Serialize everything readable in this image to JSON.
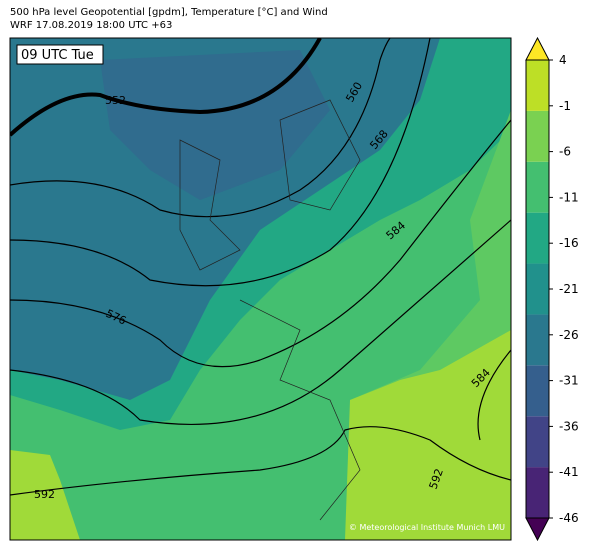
{
  "header": {
    "title": "500 hPa level Geopotential [gpdm], Temperature [°C] and Wind",
    "subtitle": "WRF 17.08.2019 18:00 UTC +63"
  },
  "map": {
    "time_label": "09 UTC Tue",
    "credit": "© Meteorological Institute Munich LMU",
    "contour_labels": [
      "552",
      "560",
      "568",
      "576",
      "584",
      "584",
      "592",
      "592"
    ]
  },
  "colorbar": {
    "lim": [
      -46,
      4
    ],
    "ticks": [
      4,
      -1,
      -6,
      -11,
      -16,
      -21,
      -26,
      -31,
      -36,
      -41,
      -46
    ],
    "colors": [
      "#440154",
      "#482475",
      "#414487",
      "#355f8d",
      "#2a788e",
      "#21918c",
      "#22a884",
      "#44bf70",
      "#7ad151",
      "#bddf26",
      "#fde725"
    ]
  }
}
